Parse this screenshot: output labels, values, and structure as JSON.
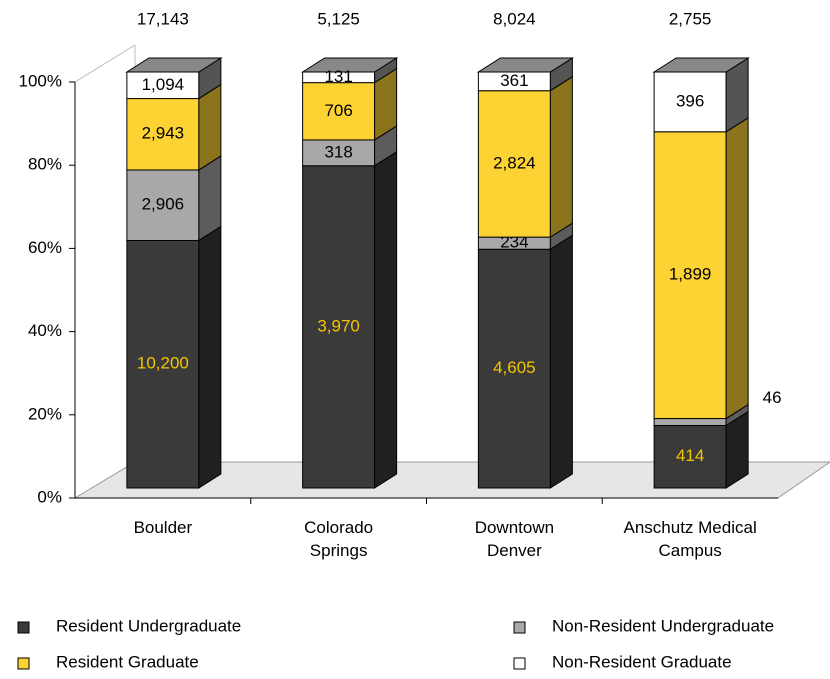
{
  "chart_data": {
    "type": "stacked_percent",
    "categories": [
      "Boulder",
      "Colorado\nSprings",
      "Downtown\nDenver",
      "Anschutz Medical\nCampus"
    ],
    "totals": [
      17143,
      5125,
      8024,
      2755
    ],
    "total_labels": [
      "17,143",
      "5,125",
      "8,024",
      "2,755"
    ],
    "series": [
      {
        "name": "Resident Undergraduate",
        "color": "#3a3a3a",
        "label_color": "#f5c400",
        "values": [
          10200,
          3970,
          4605,
          414
        ],
        "value_labels": [
          "10,200",
          "3,970",
          "4,605",
          "414"
        ]
      },
      {
        "name": "Non-Resident Undergraduate",
        "color": "#a8a8a8",
        "label_color": "#000000",
        "values": [
          2906,
          318,
          234,
          46
        ],
        "value_labels": [
          "2,906",
          "318",
          "234",
          "46"
        ]
      },
      {
        "name": "Resident Graduate",
        "color": "#fdd233",
        "label_color": "#000000",
        "values": [
          2943,
          706,
          2824,
          1899
        ],
        "value_labels": [
          "2,943",
          "706",
          "2,824",
          "1,899"
        ]
      },
      {
        "name": "Non-Resident Graduate",
        "color": "#ffffff",
        "label_color": "#000000",
        "values": [
          1094,
          131,
          361,
          396
        ],
        "value_labels": [
          "1,094",
          "131",
          "361",
          "396"
        ]
      }
    ],
    "ylim": [
      0,
      100
    ],
    "yticks": [
      {
        "value": 0,
        "label": "0%"
      },
      {
        "value": 20,
        "label": "20%"
      },
      {
        "value": 40,
        "label": "40%"
      },
      {
        "value": 60,
        "label": "60%"
      },
      {
        "value": 80,
        "label": "80%"
      },
      {
        "value": 100,
        "label": "100%"
      }
    ]
  }
}
